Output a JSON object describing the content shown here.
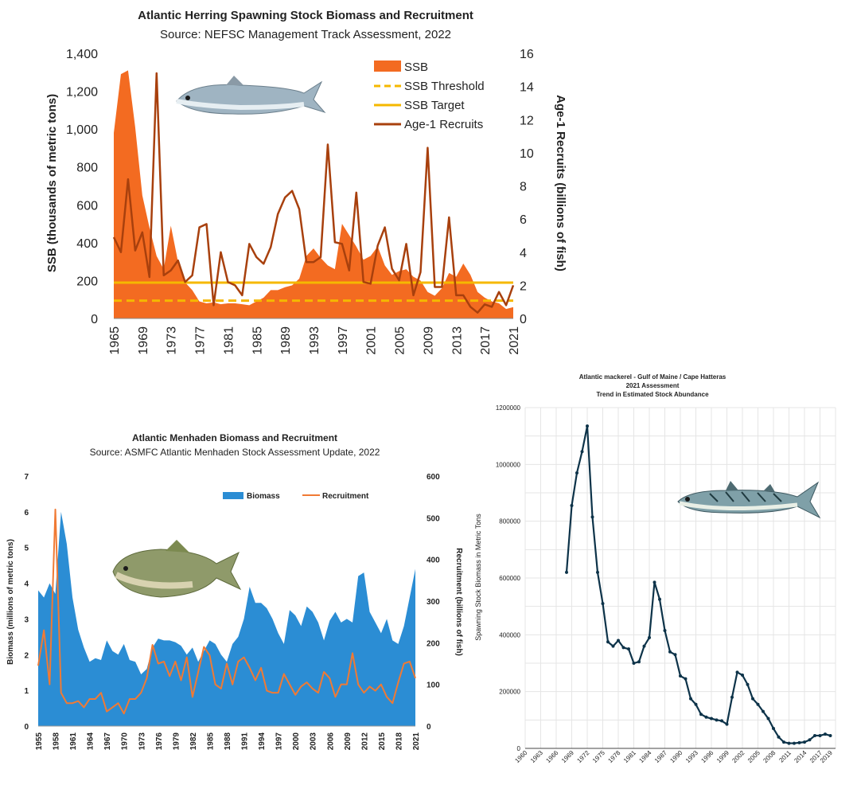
{
  "colors": {
    "ssb": "#f36b21",
    "threshold": "#f5b800",
    "target": "#f5b800",
    "recruits": "#a8400d",
    "menhaden_biomass": "#2b8dd4",
    "menhaden_recruitment": "#f07a34",
    "mackerel_line": "#0d3349"
  },
  "chart_data": [
    {
      "type": "area",
      "title": "Atlantic Herring Spawning Stock Biomass and Recruitment",
      "subtitle": "Source: NEFSC Management Track Assessment, 2022",
      "ylabel": "SSB (thousands of metric tons)",
      "y2label": "Age-1 Recruits (billions of fish)",
      "ylim": [
        0,
        1400
      ],
      "y2lim": [
        0,
        16
      ],
      "yticks": [
        "0",
        "200",
        "400",
        "600",
        "800",
        "1,000",
        "1,200",
        "1,400"
      ],
      "y2ticks": [
        "0",
        "2",
        "4",
        "6",
        "8",
        "10",
        "12",
        "14",
        "16"
      ],
      "xticks": [
        "1965",
        "1969",
        "1973",
        "1977",
        "1981",
        "1985",
        "1989",
        "1993",
        "1997",
        "2001",
        "2005",
        "2009",
        "2013",
        "2017",
        "2021"
      ],
      "x": [
        1965,
        1966,
        1967,
        1968,
        1969,
        1970,
        1971,
        1972,
        1973,
        1974,
        1975,
        1976,
        1977,
        1978,
        1979,
        1980,
        1981,
        1982,
        1983,
        1984,
        1985,
        1986,
        1987,
        1988,
        1989,
        1990,
        1991,
        1992,
        1993,
        1994,
        1995,
        1996,
        1997,
        1998,
        1999,
        2000,
        2001,
        2002,
        2003,
        2004,
        2005,
        2006,
        2007,
        2008,
        2009,
        2010,
        2011,
        2012,
        2013,
        2014,
        2015,
        2016,
        2017,
        2018,
        2019,
        2020,
        2021
      ],
      "legend": [
        "SSB",
        "SSB Threshold",
        "SSB Target",
        "Age-1 Recruits"
      ],
      "legend_placement": "top-right",
      "series": [
        {
          "name": "SSB",
          "type": "area",
          "axis": "left",
          "values": [
            980,
            1290,
            1310,
            1010,
            650,
            480,
            330,
            260,
            490,
            300,
            190,
            150,
            90,
            80,
            85,
            75,
            80,
            80,
            75,
            70,
            90,
            110,
            150,
            150,
            165,
            175,
            210,
            330,
            370,
            320,
            280,
            260,
            500,
            440,
            380,
            310,
            330,
            380,
            280,
            230,
            250,
            260,
            220,
            200,
            140,
            120,
            160,
            240,
            220,
            290,
            230,
            140,
            110,
            90,
            80,
            50,
            60
          ]
        },
        {
          "name": "SSB Threshold",
          "type": "dashed",
          "axis": "left",
          "value": 94
        },
        {
          "name": "SSB Target",
          "type": "line",
          "axis": "left",
          "value": 189
        },
        {
          "name": "Age-1 Recruits",
          "type": "line",
          "axis": "right",
          "values": [
            4.9,
            4.0,
            8.4,
            4.1,
            5.2,
            2.5,
            14.8,
            2.6,
            2.9,
            3.5,
            2.2,
            2.6,
            5.5,
            5.7,
            0.8,
            4.0,
            2.2,
            2.0,
            1.4,
            4.5,
            3.7,
            3.3,
            4.3,
            6.3,
            7.3,
            7.7,
            6.6,
            3.4,
            3.4,
            3.7,
            10.5,
            4.6,
            4.5,
            2.9,
            7.6,
            2.2,
            2.1,
            4.4,
            5.5,
            3.0,
            2.3,
            4.5,
            1.4,
            2.8,
            10.3,
            1.9,
            1.9,
            6.1,
            1.4,
            1.4,
            0.7,
            0.35,
            0.85,
            0.7,
            1.6,
            0.8,
            2.0
          ]
        }
      ]
    },
    {
      "type": "area",
      "title": "Atlantic Menhaden Biomass and Recruitment",
      "subtitle": "Source: ASMFC Atlantic Menhaden Stock Assessment Update, 2022",
      "ylabel": "Biomass (millions of metric tons)",
      "y2label": "Recruitment (billions of fish)",
      "ylim": [
        0,
        7
      ],
      "y2lim": [
        0,
        600
      ],
      "yticks": [
        "0",
        "1",
        "2",
        "3",
        "4",
        "5",
        "6",
        "7"
      ],
      "y2ticks": [
        "0",
        "100",
        "200",
        "300",
        "400",
        "500",
        "600"
      ],
      "xticks": [
        "1955",
        "1958",
        "1961",
        "1964",
        "1967",
        "1970",
        "1973",
        "1976",
        "1979",
        "1982",
        "1985",
        "1988",
        "1991",
        "1994",
        "1997",
        "2000",
        "2003",
        "2006",
        "2009",
        "2012",
        "2015",
        "2018",
        "2021"
      ],
      "x": [
        1955,
        1956,
        1957,
        1958,
        1959,
        1960,
        1961,
        1962,
        1963,
        1964,
        1965,
        1966,
        1967,
        1968,
        1969,
        1970,
        1971,
        1972,
        1973,
        1974,
        1975,
        1976,
        1977,
        1978,
        1979,
        1980,
        1981,
        1982,
        1983,
        1984,
        1985,
        1986,
        1987,
        1988,
        1989,
        1990,
        1991,
        1992,
        1993,
        1994,
        1995,
        1996,
        1997,
        1998,
        1999,
        2000,
        2001,
        2002,
        2003,
        2004,
        2005,
        2006,
        2007,
        2008,
        2009,
        2010,
        2011,
        2012,
        2013,
        2014,
        2015,
        2016,
        2017,
        2018,
        2019,
        2020,
        2021
      ],
      "legend": [
        "Biomass",
        "Recruitment"
      ],
      "legend_placement": "top-right",
      "series": [
        {
          "name": "Biomass",
          "type": "area",
          "axis": "left",
          "values": [
            3.8,
            3.6,
            4.0,
            3.7,
            6.0,
            5.1,
            3.6,
            2.7,
            2.2,
            1.8,
            1.9,
            1.85,
            2.4,
            2.1,
            2.0,
            2.3,
            1.85,
            1.8,
            1.45,
            1.6,
            2.2,
            2.45,
            2.4,
            2.4,
            2.35,
            2.25,
            2.0,
            2.2,
            1.8,
            2.1,
            2.4,
            2.3,
            2.0,
            1.8,
            2.3,
            2.5,
            3.0,
            3.9,
            3.45,
            3.45,
            3.3,
            3.0,
            2.6,
            2.3,
            3.25,
            3.1,
            2.8,
            3.35,
            3.2,
            2.9,
            2.4,
            2.95,
            3.2,
            2.9,
            3.0,
            2.9,
            4.2,
            4.3,
            3.2,
            2.9,
            2.6,
            3.0,
            2.4,
            2.3,
            2.8,
            3.6,
            4.4
          ]
        },
        {
          "name": "Recruitment",
          "type": "line",
          "axis": "right",
          "values": [
            145,
            230,
            100,
            520,
            80,
            55,
            55,
            60,
            45,
            65,
            65,
            80,
            35,
            45,
            55,
            30,
            65,
            65,
            80,
            115,
            195,
            150,
            155,
            120,
            155,
            110,
            165,
            70,
            130,
            190,
            170,
            100,
            90,
            150,
            100,
            155,
            165,
            140,
            110,
            140,
            85,
            80,
            80,
            125,
            100,
            75,
            95,
            105,
            90,
            80,
            130,
            115,
            70,
            100,
            100,
            175,
            100,
            80,
            95,
            85,
            100,
            70,
            55,
            105,
            150,
            155,
            115
          ]
        }
      ]
    },
    {
      "type": "line",
      "title": "Atlantic mackerel - Gulf of Maine / Cape Hatteras",
      "subtitle": "2021 Assessment",
      "subtitle2": "Trend in Estimated Stock Abundance",
      "ylabel": "Spawning Stock Biomass in Metric Tons",
      "ylim": [
        0,
        1200000
      ],
      "yticks": [
        "0",
        "200000",
        "400000",
        "600000",
        "800000",
        "1000000",
        "1200000"
      ],
      "xlim": [
        1960,
        2020
      ],
      "xticks": [
        "1960",
        "1963",
        "1966",
        "1969",
        "1972",
        "1975",
        "1978",
        "1981",
        "1984",
        "1987",
        "1990",
        "1993",
        "1996",
        "1999",
        "2002",
        "2005",
        "2008",
        "2011",
        "2014",
        "2017",
        "2019"
      ],
      "grid": true,
      "series": [
        {
          "name": "",
          "values": [
            620000,
            855000,
            970000,
            1045000,
            1135000,
            815000,
            620000,
            510000,
            375000,
            360000,
            380000,
            355000,
            350000,
            300000,
            305000,
            360000,
            390000,
            585000,
            525000,
            415000,
            340000,
            330000,
            255000,
            245000,
            175000,
            155000,
            120000,
            110000,
            105000,
            100000,
            97000,
            85000,
            180000,
            268000,
            258000,
            225000,
            175000,
            155000,
            130000,
            105000,
            70000,
            40000,
            22000,
            18000,
            18000,
            20000,
            22000,
            30000,
            45000,
            45000,
            50000,
            45000
          ],
          "x": [
            1968,
            1969,
            1970,
            1971,
            1972,
            1973,
            1974,
            1975,
            1976,
            1977,
            1978,
            1979,
            1980,
            1981,
            1982,
            1983,
            1984,
            1985,
            1986,
            1987,
            1988,
            1989,
            1990,
            1991,
            1992,
            1993,
            1994,
            1995,
            1996,
            1997,
            1998,
            1999,
            2000,
            2001,
            2002,
            2003,
            2004,
            2005,
            2006,
            2007,
            2008,
            2009,
            2010,
            2011,
            2012,
            2013,
            2014,
            2015,
            2016,
            2017,
            2018,
            2019
          ]
        }
      ]
    }
  ],
  "icons": [
    "herring-fish-icon",
    "menhaden-fish-icon",
    "mackerel-fish-icon"
  ]
}
